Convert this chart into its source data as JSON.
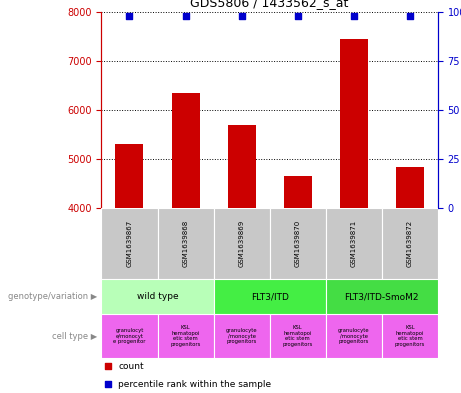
{
  "title": "GDS5806 / 1433562_s_at",
  "samples": [
    "GSM1639867",
    "GSM1639868",
    "GSM1639869",
    "GSM1639870",
    "GSM1639871",
    "GSM1639872"
  ],
  "counts": [
    5300,
    6350,
    5700,
    4650,
    7450,
    4850
  ],
  "percentile_ranks": [
    98,
    98,
    98,
    98,
    98,
    98
  ],
  "ylim_left": [
    4000,
    8000
  ],
  "ylim_right": [
    0,
    100
  ],
  "yticks_left": [
    4000,
    5000,
    6000,
    7000,
    8000
  ],
  "yticks_right": [
    0,
    25,
    50,
    75,
    100
  ],
  "bar_color": "#cc0000",
  "percentile_color": "#0000cc",
  "genotype_groups": [
    {
      "label": "wild type",
      "start": 0,
      "end": 2,
      "color": "#b8ffb8"
    },
    {
      "label": "FLT3/ITD",
      "start": 2,
      "end": 4,
      "color": "#44ee44"
    },
    {
      "label": "FLT3/ITD-SmoM2",
      "start": 4,
      "end": 6,
      "color": "#44dd44"
    }
  ],
  "cell_type_labels": [
    "granulocyt\ne/monocyt\ne progenitor",
    "KSL\nhematopoi\netic stem\nprogenitors",
    "granulocyte\n/monocyte\nprogenitors",
    "KSL\nhematopoi\netic stem\nprogenitors",
    "granulocyte\n/monocyte\nprogenitors",
    "KSL\nhematopoi\netic stem\nprogenitors"
  ],
  "cell_bg_color": "#ee66ee",
  "sample_box_color": "#c8c8c8",
  "left_label_color": "#888888",
  "legend_count_color": "#cc0000",
  "legend_percentile_color": "#0000cc",
  "bar_width": 0.5
}
